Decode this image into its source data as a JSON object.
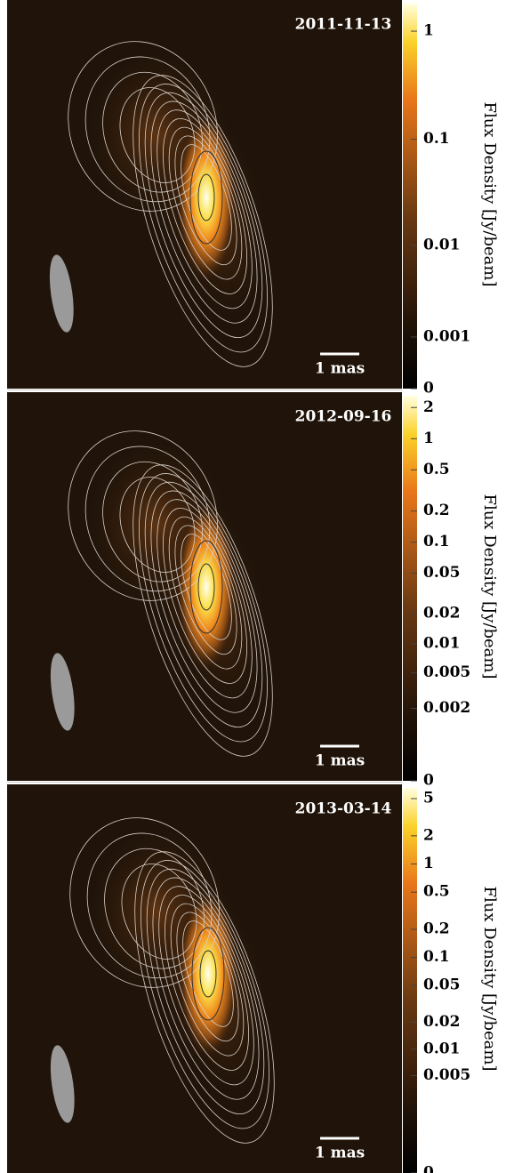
{
  "chart_data": [
    {
      "type": "image",
      "date": "2011-11-13",
      "scale_bar": "1 mas",
      "colorbar_label": "Flux Density [Jy/beam]",
      "scale": "symlog",
      "ylim": [
        0,
        1.8
      ],
      "yticks": [
        1,
        0.1,
        0.01,
        0.001,
        0
      ]
    },
    {
      "type": "image",
      "date": "2012-09-16",
      "scale_bar": "1 mas",
      "colorbar_label": "Flux Density [Jy/beam]",
      "scale": "symlog",
      "ylim": [
        0,
        2.6
      ],
      "yticks": [
        2,
        1,
        0.5,
        0.2,
        0.1,
        0.05,
        0.02,
        0.01,
        0.005,
        0.002,
        0
      ]
    },
    {
      "type": "image",
      "date": "2013-03-14",
      "scale_bar": "1 mas",
      "colorbar_label": "Flux Density [Jy/beam]",
      "scale": "symlog",
      "ylim": [
        0,
        6.5
      ],
      "yticks": [
        5,
        2,
        1,
        0.5,
        0.2,
        0.1,
        0.05,
        0.02,
        0.01,
        0.005,
        0
      ]
    }
  ]
}
